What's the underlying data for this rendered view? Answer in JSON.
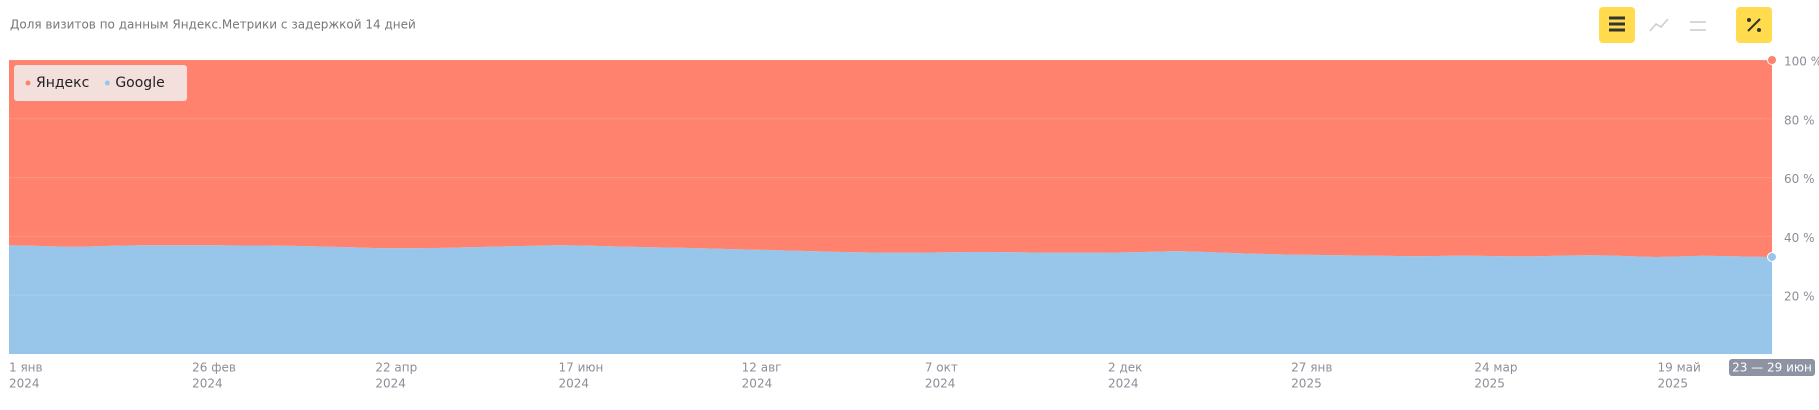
{
  "chart_data": {
    "type": "stacked_area_percent",
    "title": "Доля визитов по данным Яндекс.Метрики с задержкой 14 дней",
    "categories": [
      "1 янв",
      null,
      null,
      null,
      null,
      null,
      null,
      null,
      "26 фев",
      null,
      null,
      null,
      null,
      null,
      null,
      null,
      "22 апр",
      null,
      null,
      null,
      null,
      null,
      null,
      null,
      "17 июн",
      null,
      null,
      null,
      null,
      null,
      null,
      null,
      "12 авг",
      null,
      null,
      null,
      null,
      null,
      null,
      null,
      "7 окт",
      null,
      null,
      null,
      null,
      null,
      null,
      null,
      "2 дек",
      null,
      null,
      null,
      null,
      null,
      null,
      null,
      "27 янв",
      null,
      null,
      null,
      null,
      null,
      null,
      null,
      "24 мар",
      null,
      null,
      null,
      null,
      null,
      null,
      null,
      "19 май",
      null,
      null,
      null,
      null,
      "23 — 29 июн"
    ],
    "years": [
      "2024",
      null,
      null,
      null,
      null,
      null,
      null,
      null,
      "2024",
      null,
      null,
      null,
      null,
      null,
      null,
      null,
      "2024",
      null,
      null,
      null,
      null,
      null,
      null,
      null,
      "2024",
      null,
      null,
      null,
      null,
      null,
      null,
      null,
      "2024",
      null,
      null,
      null,
      null,
      null,
      null,
      null,
      "2024",
      null,
      null,
      null,
      null,
      null,
      null,
      null,
      "2024",
      null,
      null,
      null,
      null,
      null,
      null,
      null,
      "2025",
      null,
      null,
      null,
      null,
      null,
      null,
      null,
      "2025",
      null,
      null,
      null,
      null,
      null,
      null,
      null,
      "2025",
      null,
      null,
      null,
      null,
      null
    ],
    "series": [
      {
        "name": "Яндекс",
        "color": "#fe826e",
        "values": [
          63,
          63.2,
          63.4,
          63.5,
          63.3,
          63.1,
          63,
          63,
          63,
          63,
          63.1,
          63.1,
          63.2,
          63.3,
          63.5,
          63.7,
          64,
          64,
          64,
          63.9,
          63.7,
          63.5,
          63.3,
          63.2,
          63,
          63.1,
          63.3,
          63.5,
          63.7,
          63.8,
          64,
          64.2,
          64.4,
          64.6,
          64.8,
          65,
          65.2,
          65.4,
          65.5,
          65.5,
          65.5,
          65.4,
          65.3,
          65.3,
          65.4,
          65.5,
          65.5,
          65.5,
          65.5,
          65.4,
          65.2,
          65,
          65.2,
          65.5,
          65.8,
          66,
          66.2,
          66.3,
          66.4,
          66.5,
          66.6,
          66.7,
          66.7,
          66.6,
          66.6,
          66.7,
          66.8,
          66.7,
          66.5,
          66.4,
          66.5,
          66.8,
          67,
          66.8,
          66.6,
          66.7,
          66.9,
          67
        ]
      },
      {
        "name": "Google",
        "color": "#98c6ea",
        "values": [
          37,
          36.8,
          36.6,
          36.5,
          36.7,
          36.9,
          37,
          37,
          37,
          37,
          36.9,
          36.9,
          36.8,
          36.7,
          36.5,
          36.3,
          36,
          36,
          36,
          36.1,
          36.3,
          36.5,
          36.7,
          36.8,
          37,
          36.9,
          36.7,
          36.5,
          36.3,
          36.2,
          36,
          35.8,
          35.6,
          35.4,
          35.2,
          35,
          34.8,
          34.6,
          34.5,
          34.5,
          34.5,
          34.6,
          34.7,
          34.7,
          34.6,
          34.5,
          34.5,
          34.5,
          34.5,
          34.6,
          34.8,
          35,
          34.8,
          34.5,
          34.2,
          34,
          33.8,
          33.7,
          33.6,
          33.5,
          33.4,
          33.3,
          33.3,
          33.4,
          33.4,
          33.3,
          33.2,
          33.3,
          33.5,
          33.6,
          33.5,
          33.2,
          33,
          33.2,
          33.4,
          33.3,
          33.1,
          33
        ]
      }
    ],
    "ylim": [
      0,
      100
    ],
    "yticks": [
      {
        "value": 20,
        "label": "20 %"
      },
      {
        "value": 40,
        "label": "40 %"
      },
      {
        "value": 60,
        "label": "60 %"
      },
      {
        "value": 80,
        "label": "80 %"
      },
      {
        "value": 100,
        "label": "100 %"
      }
    ]
  }
}
